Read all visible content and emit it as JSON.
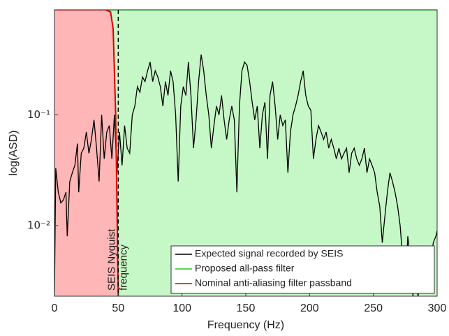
{
  "chart_data": {
    "type": "line",
    "xlabel": "Frequency (Hz)",
    "ylabel": "log(ASD)",
    "xlim": [
      0,
      300
    ],
    "xticks": [
      0,
      50,
      100,
      150,
      200,
      250,
      300
    ],
    "ylim": [
      0.0023,
      0.89
    ],
    "log_y": true,
    "yticks": [
      {
        "value": 0.01,
        "label": "10⁻²"
      },
      {
        "value": 0.1,
        "label": "10⁻¹"
      }
    ],
    "grid": false,
    "legend": "lower right",
    "vline": 50,
    "annotation": [
      "SEIS Nyquist",
      "frequency"
    ],
    "series": [
      {
        "name": "Expected signal recorded by SEIS",
        "color": "#000000",
        "x": [
          0,
          1,
          3,
          5,
          7,
          9,
          10,
          12,
          14,
          16,
          18,
          19,
          21,
          23,
          25,
          27,
          29,
          31,
          33,
          35,
          37,
          39,
          41,
          43,
          45,
          47,
          49,
          51,
          53,
          55,
          57,
          59,
          61,
          63,
          65,
          67,
          69,
          71,
          73,
          75,
          77,
          79,
          81,
          83,
          85,
          87,
          89,
          91,
          93,
          95,
          97,
          99,
          101,
          103,
          105,
          107,
          109,
          111,
          113,
          115,
          117,
          119,
          121,
          123,
          125,
          127,
          129,
          131,
          133,
          135,
          137,
          139,
          141,
          143,
          145,
          147,
          149,
          151,
          153,
          155,
          157,
          159,
          161,
          163,
          165,
          167,
          169,
          171,
          173,
          175,
          177,
          179,
          181,
          183,
          185,
          187,
          189,
          191,
          193,
          195,
          197,
          199,
          201,
          203,
          205,
          207,
          209,
          211,
          213,
          215,
          217,
          219,
          221,
          223,
          225,
          227,
          229,
          231,
          233,
          235,
          237,
          239,
          241,
          243,
          245,
          247,
          249,
          251,
          253,
          255,
          257,
          259,
          261,
          263,
          265,
          267,
          269,
          271,
          273,
          275,
          277,
          279,
          281,
          283,
          285,
          287,
          289,
          291,
          293,
          295,
          297,
          299,
          300
        ],
        "values": [
          0.0023,
          0.033,
          0.02,
          0.016,
          0.017,
          0.02,
          0.008,
          0.025,
          0.03,
          0.035,
          0.055,
          0.02,
          0.045,
          0.05,
          0.07,
          0.045,
          0.06,
          0.09,
          0.05,
          0.025,
          0.1,
          0.04,
          0.07,
          0.08,
          0.04,
          0.1,
          0.03,
          0.07,
          0.035,
          0.08,
          0.05,
          0.045,
          0.1,
          0.12,
          0.18,
          0.16,
          0.22,
          0.2,
          0.25,
          0.3,
          0.2,
          0.25,
          0.22,
          0.18,
          0.12,
          0.2,
          0.15,
          0.25,
          0.2,
          0.1,
          0.025,
          0.12,
          0.18,
          0.15,
          0.3,
          0.15,
          0.05,
          0.09,
          0.2,
          0.35,
          0.25,
          0.15,
          0.1,
          0.05,
          0.08,
          0.12,
          0.1,
          0.15,
          0.09,
          0.06,
          0.09,
          0.12,
          0.09,
          0.02,
          0.12,
          0.25,
          0.3,
          0.28,
          0.2,
          0.13,
          0.09,
          0.12,
          0.05,
          0.1,
          0.13,
          0.04,
          0.15,
          0.2,
          0.12,
          0.06,
          0.1,
          0.08,
          0.09,
          0.03,
          0.07,
          0.1,
          0.12,
          0.15,
          0.2,
          0.25,
          0.15,
          0.12,
          0.11,
          0.04,
          0.06,
          0.08,
          0.07,
          0.06,
          0.07,
          0.05,
          0.06,
          0.05,
          0.04,
          0.05,
          0.04,
          0.045,
          0.05,
          0.03,
          0.045,
          0.05,
          0.04,
          0.035,
          0.04,
          0.05,
          0.03,
          0.04,
          0.035,
          0.03,
          0.02,
          0.015,
          0.007,
          0.012,
          0.02,
          0.03,
          0.025,
          0.02,
          0.015,
          0.01,
          0.005,
          0.0025,
          0.008,
          0.005,
          0.0023,
          0.004,
          0.0023,
          0.003,
          0.005,
          0.003,
          0.006,
          0.005,
          0.007,
          0.008,
          0.009
        ]
      },
      {
        "name": "Proposed all-pass filter",
        "color": "#22cc22",
        "fill": "#c6f7c6",
        "x": [
          0,
          300
        ],
        "values": [
          0.89,
          0.89
        ]
      },
      {
        "name": "Nominal anti-aliasing filter passband",
        "color": "#dd0000",
        "fill": "#ffb6b6",
        "x": [
          0,
          40,
          44,
          46,
          48,
          50
        ],
        "values": [
          0.89,
          0.89,
          0.85,
          0.6,
          0.1,
          0.0023
        ]
      }
    ]
  }
}
